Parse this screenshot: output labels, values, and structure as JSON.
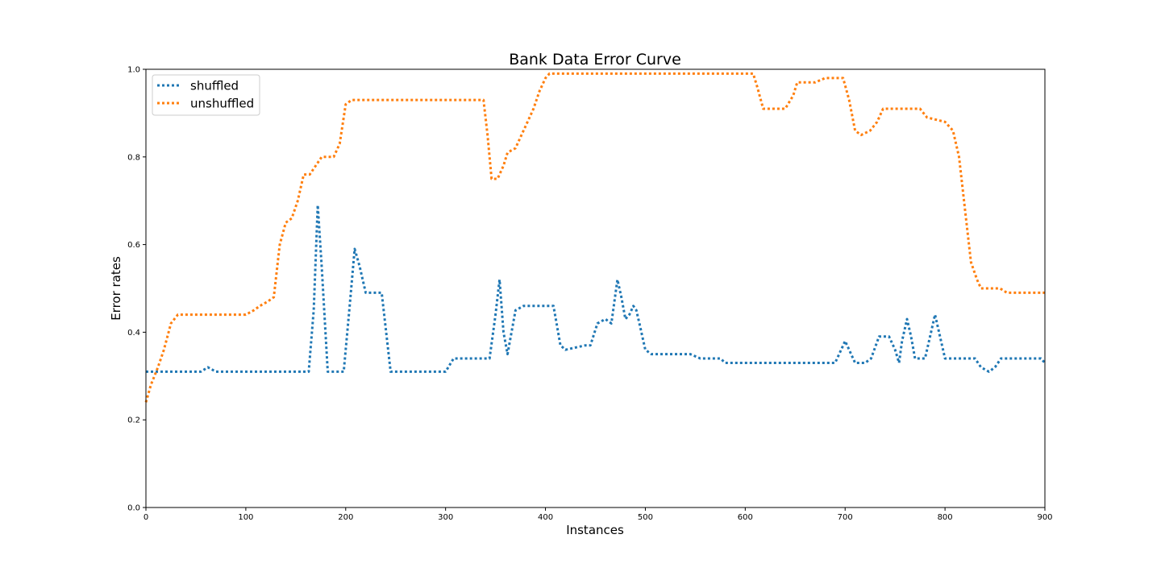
{
  "chart_data": {
    "type": "line",
    "title": "Bank Data Error Curve",
    "xlabel": "Instances",
    "ylabel": "Error rates",
    "xlim": [
      0,
      900
    ],
    "ylim": [
      0.0,
      1.0
    ],
    "xticks": [
      "0",
      "100",
      "200",
      "300",
      "400",
      "500",
      "600",
      "700",
      "800",
      "900"
    ],
    "yticks": [
      "0.0",
      "0.2",
      "0.4",
      "0.6",
      "0.8",
      "1.0"
    ],
    "grid": false,
    "legend_position": "upper-left",
    "series": [
      {
        "name": "shuffled",
        "color": "#1f77b4",
        "style": "dotted",
        "x": [
          0,
          55,
          62,
          70,
          163,
          168,
          172,
          176,
          182,
          188,
          198,
          204,
          209,
          214,
          220,
          236,
          245,
          300,
          308,
          344,
          350,
          354,
          358,
          362,
          370,
          378,
          384,
          408,
          415,
          420,
          440,
          445,
          452,
          460,
          466,
          472,
          476,
          480,
          484,
          488,
          491,
          495,
          500,
          506,
          510,
          545,
          555,
          575,
          580,
          690,
          696,
          700,
          704,
          710,
          720,
          726,
          734,
          744,
          750,
          754,
          757,
          762,
          766,
          770,
          780,
          786,
          790,
          794,
          800,
          830,
          836,
          844,
          850,
          856,
          896,
          900
        ],
        "y": [
          0.31,
          0.31,
          0.32,
          0.31,
          0.31,
          0.45,
          0.69,
          0.55,
          0.31,
          0.31,
          0.31,
          0.46,
          0.59,
          0.55,
          0.49,
          0.49,
          0.31,
          0.31,
          0.34,
          0.34,
          0.44,
          0.52,
          0.4,
          0.35,
          0.45,
          0.46,
          0.46,
          0.46,
          0.37,
          0.36,
          0.37,
          0.37,
          0.42,
          0.43,
          0.42,
          0.52,
          0.48,
          0.43,
          0.44,
          0.46,
          0.45,
          0.41,
          0.36,
          0.35,
          0.35,
          0.35,
          0.34,
          0.34,
          0.33,
          0.33,
          0.36,
          0.38,
          0.36,
          0.33,
          0.33,
          0.34,
          0.39,
          0.39,
          0.36,
          0.33,
          0.38,
          0.43,
          0.39,
          0.34,
          0.34,
          0.4,
          0.44,
          0.4,
          0.34,
          0.34,
          0.32,
          0.31,
          0.32,
          0.34,
          0.34,
          0.33
        ]
      },
      {
        "name": "unshuffled",
        "color": "#ff7f0e",
        "style": "dotted",
        "x": [
          0,
          5,
          12,
          18,
          25,
          32,
          40,
          100,
          108,
          114,
          122,
          128,
          134,
          140,
          146,
          152,
          158,
          164,
          170,
          176,
          188,
          194,
          200,
          206,
          338,
          342,
          346,
          352,
          358,
          362,
          370,
          376,
          382,
          388,
          394,
          400,
          404,
          608,
          612,
          618,
          640,
          648,
          652,
          670,
          680,
          698,
          704,
          710,
          716,
          725,
          732,
          738,
          775,
          782,
          800,
          808,
          814,
          820,
          826,
          832,
          836,
          855,
          862,
          872,
          900
        ],
        "y": [
          0.24,
          0.28,
          0.32,
          0.36,
          0.42,
          0.44,
          0.44,
          0.44,
          0.45,
          0.46,
          0.47,
          0.48,
          0.6,
          0.65,
          0.66,
          0.7,
          0.76,
          0.76,
          0.78,
          0.8,
          0.8,
          0.83,
          0.92,
          0.93,
          0.93,
          0.85,
          0.75,
          0.75,
          0.78,
          0.81,
          0.82,
          0.85,
          0.88,
          0.91,
          0.95,
          0.98,
          0.99,
          0.99,
          0.96,
          0.91,
          0.91,
          0.94,
          0.97,
          0.97,
          0.98,
          0.98,
          0.93,
          0.86,
          0.85,
          0.86,
          0.88,
          0.91,
          0.91,
          0.89,
          0.88,
          0.86,
          0.8,
          0.68,
          0.56,
          0.52,
          0.5,
          0.5,
          0.49,
          0.49,
          0.49
        ]
      }
    ]
  }
}
